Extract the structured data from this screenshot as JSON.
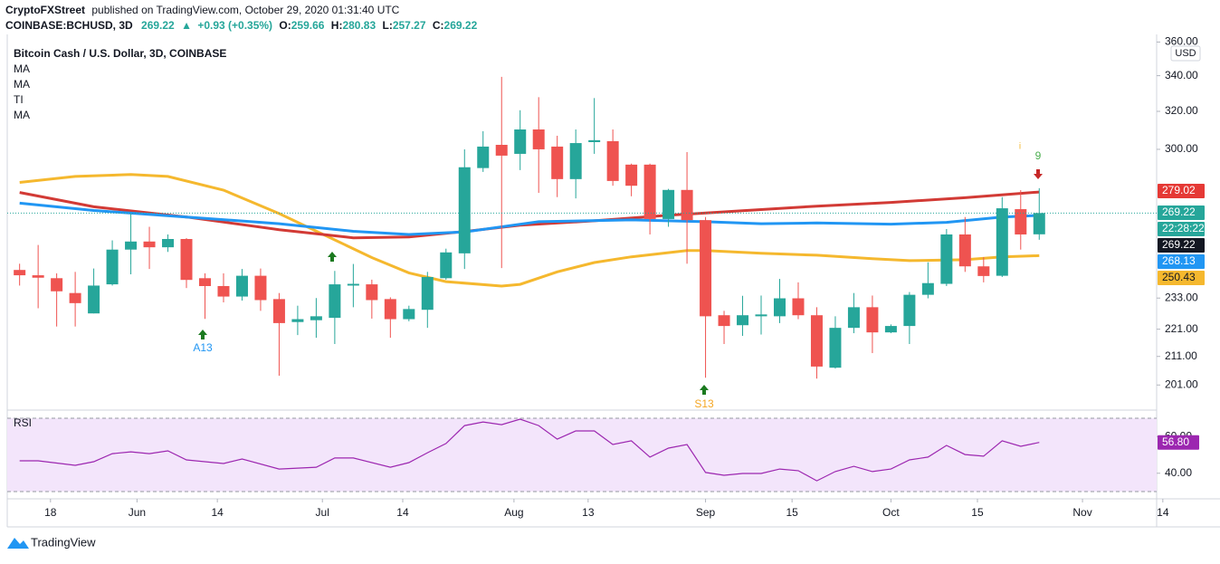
{
  "header": {
    "author": "CryptoFXStreet",
    "published": "published on TradingView.com, October 29, 2020 01:31:40 UTC",
    "symbol": "COINBASE:BCHUSD, 3D",
    "last": "269.22",
    "arrow": "▲",
    "change": "+0.93 (+0.35%)",
    "ohlc": [
      {
        "key": "O:",
        "value": "259.66"
      },
      {
        "key": "H:",
        "value": "280.83"
      },
      {
        "key": "L:",
        "value": "257.27"
      },
      {
        "key": "C:",
        "value": "269.22"
      }
    ]
  },
  "footer": {
    "brand": "TradingView"
  },
  "chart_data": [
    {
      "type": "candlestick",
      "title": "Bitcoin Cash / U.S. Dollar, 3D, COINBASE",
      "legend": [
        "MA",
        "MA",
        "TI",
        "MA"
      ],
      "currency": "USD",
      "log": true,
      "grid": false,
      "up_color": "#26a69a",
      "down_color": "#ef5350",
      "xlim": [
        "2020-05-11",
        "2020-11-13"
      ],
      "xticks": [
        {
          "value": "2020-05-18",
          "label": "18"
        },
        {
          "value": "2020-06-01",
          "label": "Jun"
        },
        {
          "value": "2020-06-14",
          "label": "14"
        },
        {
          "value": "2020-07-01",
          "label": "Jul"
        },
        {
          "value": "2020-07-14",
          "label": "14"
        },
        {
          "value": "2020-08-01",
          "label": "Aug"
        },
        {
          "value": "2020-08-13",
          "label": "13"
        },
        {
          "value": "2020-09-01",
          "label": "Sep"
        },
        {
          "value": "2020-09-15",
          "label": "15"
        },
        {
          "value": "2020-10-01",
          "label": "Oct"
        },
        {
          "value": "2020-10-15",
          "label": "15"
        },
        {
          "value": "2020-11-01",
          "label": "Nov"
        },
        {
          "value": "2020-11-14",
          "label": "14"
        }
      ],
      "ylim": [
        193.5,
        364.7
      ],
      "yticks": [
        {
          "value": 360,
          "label": "360.00"
        },
        {
          "value": 340,
          "label": "340.00"
        },
        {
          "value": 320,
          "label": "320.00"
        },
        {
          "value": 300,
          "label": "300.00"
        },
        {
          "value": 233,
          "label": "233.00"
        },
        {
          "value": 221,
          "label": "221.00"
        },
        {
          "value": 211,
          "label": "211.00"
        },
        {
          "value": 201,
          "label": "201.00"
        }
      ],
      "x": [
        "2020-05-13",
        "2020-05-16",
        "2020-05-19",
        "2020-05-22",
        "2020-05-25",
        "2020-05-28",
        "2020-05-31",
        "2020-06-03",
        "2020-06-06",
        "2020-06-09",
        "2020-06-12",
        "2020-06-15",
        "2020-06-18",
        "2020-06-21",
        "2020-06-24",
        "2020-06-27",
        "2020-06-30",
        "2020-07-03",
        "2020-07-06",
        "2020-07-09",
        "2020-07-12",
        "2020-07-15",
        "2020-07-18",
        "2020-07-21",
        "2020-07-24",
        "2020-07-27",
        "2020-07-30",
        "2020-08-02",
        "2020-08-05",
        "2020-08-08",
        "2020-08-11",
        "2020-08-14",
        "2020-08-17",
        "2020-08-20",
        "2020-08-23",
        "2020-08-26",
        "2020-08-29",
        "2020-09-01",
        "2020-09-04",
        "2020-09-07",
        "2020-09-10",
        "2020-09-13",
        "2020-09-16",
        "2020-09-19",
        "2020-09-22",
        "2020-09-25",
        "2020-09-28",
        "2020-10-01",
        "2020-10-04",
        "2020-10-07",
        "2020-10-10",
        "2020-10-13",
        "2020-10-16",
        "2020-10-19",
        "2020-10-22",
        "2020-10-25"
      ],
      "open": [
        244.4,
        242.2,
        241,
        235,
        227,
        238.5,
        253,
        256.5,
        254,
        257.6,
        241,
        237.8,
        233.6,
        242,
        232.6,
        223.7,
        224.4,
        225.3,
        238,
        238.5,
        232.6,
        224.8,
        228.4,
        241,
        251.4,
        290.6,
        302.3,
        297.7,
        310.3,
        301.4,
        285.2,
        303.7,
        304.2,
        292.3,
        292.3,
        266.5,
        280,
        266,
        226.3,
        222.5,
        225.9,
        225.9,
        232.9,
        226.3,
        207,
        221.5,
        229.4,
        219.8,
        222.2,
        234.3,
        238.7,
        259.6,
        245.9,
        242,
        271,
        259.66
      ],
      "high": [
        247,
        255,
        243,
        243.6,
        245,
        257,
        268.9,
        263,
        259.6,
        258,
        243,
        243,
        244.8,
        245,
        235,
        230,
        233,
        244,
        246.9,
        240.4,
        233.3,
        230,
        243.6,
        253.4,
        300,
        309.4,
        339.3,
        320.6,
        327.8,
        307,
        310.3,
        327.3,
        310.3,
        292.8,
        292.8,
        280.5,
        298.6,
        267.4,
        228,
        233.9,
        234,
        240.7,
        239.3,
        229.4,
        225.9,
        235,
        234,
        222.8,
        235.4,
        247.6,
        262,
        267.4,
        249.8,
        276.6,
        279.9,
        280.83
      ],
      "low": [
        238,
        229,
        222,
        222,
        227,
        238,
        242.6,
        244.8,
        252,
        237,
        224.9,
        231.3,
        232,
        228,
        204.2,
        218.8,
        217.8,
        215.5,
        229.4,
        225,
        217.8,
        224,
        221.5,
        240.4,
        244.8,
        288.7,
        245.2,
        289.6,
        278.6,
        276.6,
        276,
        297.7,
        282,
        277,
        259.6,
        263,
        247,
        203.5,
        215.5,
        218.5,
        219,
        223.3,
        224.8,
        203.2,
        206.7,
        219.5,
        212.2,
        219.5,
        215.5,
        232.9,
        237.8,
        243.6,
        239.3,
        241.5,
        253,
        257.27
      ],
      "close": [
        242.2,
        241.2,
        235.7,
        231,
        238,
        253,
        256.5,
        254,
        257.6,
        240.3,
        237.8,
        233.6,
        242,
        232.2,
        223.3,
        224.8,
        225.9,
        238.5,
        238.7,
        232.2,
        224.8,
        228.7,
        241.5,
        251.8,
        291,
        301.4,
        296.8,
        310.3,
        300,
        285.2,
        303.2,
        304.7,
        284.3,
        282,
        266.5,
        280,
        266,
        225.9,
        222.2,
        226.3,
        226.6,
        232.9,
        226.3,
        207.4,
        221.5,
        229.4,
        219.8,
        222.2,
        234.3,
        239,
        259.6,
        245.9,
        241.9,
        271.4,
        259.6,
        269.22
      ],
      "series": [
        {
          "color": "#f5b82e",
          "x": [
            "2020-05-13",
            "2020-05-22",
            "2020-05-31",
            "2020-06-06",
            "2020-06-15",
            "2020-06-24",
            "2020-07-03",
            "2020-07-09",
            "2020-07-15",
            "2020-07-21",
            "2020-07-30",
            "2020-08-02",
            "2020-08-08",
            "2020-08-14",
            "2020-08-20",
            "2020-08-29",
            "2020-09-01",
            "2020-09-10",
            "2020-09-19",
            "2020-09-28",
            "2020-10-04",
            "2020-10-13",
            "2020-10-19",
            "2020-10-25"
          ],
          "values": [
            283.6,
            286.5,
            287.4,
            286.5,
            279.9,
            269.0,
            257.2,
            249.6,
            243.2,
            239.6,
            237.8,
            238.5,
            243.6,
            247.5,
            249.9,
            252.6,
            252.6,
            251.4,
            250.6,
            249.1,
            248.3,
            248.7,
            249.9,
            250.43
          ]
        },
        {
          "color": "#d23a35",
          "x": [
            "2020-05-13",
            "2020-05-25",
            "2020-06-09",
            "2020-06-24",
            "2020-07-06",
            "2020-07-15",
            "2020-07-24",
            "2020-08-02",
            "2020-08-14",
            "2020-08-26",
            "2020-09-07",
            "2020-09-19",
            "2020-10-01",
            "2020-10-13",
            "2020-10-25"
          ],
          "values": [
            278.8,
            272.1,
            267.4,
            261.7,
            258.1,
            258.5,
            260.9,
            263.7,
            265.7,
            268.2,
            270.3,
            272.4,
            274.1,
            276.3,
            279.02
          ]
        },
        {
          "color": "#2196f3",
          "x": [
            "2020-05-13",
            "2020-05-25",
            "2020-06-09",
            "2020-06-24",
            "2020-07-06",
            "2020-07-15",
            "2020-07-24",
            "2020-08-05",
            "2020-08-20",
            "2020-09-01",
            "2020-09-10",
            "2020-09-19",
            "2020-10-01",
            "2020-10-10",
            "2020-10-19",
            "2020-10-25"
          ],
          "values": [
            273.8,
            270.4,
            267.4,
            264.4,
            261.0,
            259.6,
            260.7,
            265.3,
            266.1,
            265.3,
            264.4,
            264.7,
            264.2,
            265.0,
            267.4,
            268.13
          ]
        }
      ],
      "price_tags": [
        {
          "label": "279.02",
          "color": "#e53935",
          "text_color": "#ffffff"
        },
        {
          "label": "269.22",
          "color": "#26a69a",
          "text_color": "#ffffff"
        },
        {
          "label": "22:28:22",
          "color": "#26a69a",
          "text_color": "#ffffff"
        },
        {
          "label": "269.22",
          "color": "#131722",
          "text_color": "#ffffff"
        },
        {
          "label": "268.13",
          "color": "#2196f3",
          "text_color": "#ffffff"
        },
        {
          "label": "250.43",
          "color": "#f5b82e",
          "text_color": "#131722"
        }
      ],
      "annotations": [
        {
          "text": "A13",
          "color": "#2196f3"
        },
        {
          "text": "S13",
          "color": "#f5a623"
        },
        {
          "text": "9",
          "color": "#4caf50"
        },
        {
          "text": "i",
          "color": "#f5b82e"
        }
      ]
    },
    {
      "type": "line",
      "title": "RSI",
      "color": "#9c27b0",
      "band_color": "#f3e5fb",
      "xlim": [
        "2020-05-11",
        "2020-11-13"
      ],
      "ylim": [
        30,
        70
      ],
      "yticks": [
        {
          "value": 40,
          "label": "40.00"
        },
        {
          "value": 60,
          "label": "60.00"
        }
      ],
      "x": [
        "2020-05-13",
        "2020-05-16",
        "2020-05-22",
        "2020-05-25",
        "2020-05-28",
        "2020-05-31",
        "2020-06-03",
        "2020-06-06",
        "2020-06-09",
        "2020-06-15",
        "2020-06-18",
        "2020-06-24",
        "2020-06-30",
        "2020-07-03",
        "2020-07-06",
        "2020-07-12",
        "2020-07-15",
        "2020-07-18",
        "2020-07-21",
        "2020-07-24",
        "2020-07-27",
        "2020-07-30",
        "2020-08-02",
        "2020-08-05",
        "2020-08-08",
        "2020-08-11",
        "2020-08-14",
        "2020-08-17",
        "2020-08-20",
        "2020-08-23",
        "2020-08-26",
        "2020-08-29",
        "2020-09-01",
        "2020-09-04",
        "2020-09-07",
        "2020-09-10",
        "2020-09-13",
        "2020-09-16",
        "2020-09-19",
        "2020-09-22",
        "2020-09-25",
        "2020-09-28",
        "2020-10-01",
        "2020-10-04",
        "2020-10-07",
        "2020-10-10",
        "2020-10-13",
        "2020-10-16",
        "2020-10-19",
        "2020-10-22",
        "2020-10-25"
      ],
      "values": [
        46.8,
        46.8,
        44.3,
        46.3,
        50.7,
        51.7,
        50.7,
        52.2,
        47.3,
        45.3,
        47.8,
        42.3,
        43.3,
        48.3,
        48.3,
        43.3,
        45.8,
        51.2,
        56.2,
        66.0,
        68.0,
        66.5,
        69.5,
        66.0,
        58.6,
        63.1,
        63.1,
        55.7,
        57.7,
        48.8,
        53.7,
        55.7,
        40.4,
        38.9,
        39.9,
        39.9,
        42.3,
        41.4,
        35.9,
        40.9,
        43.8,
        40.9,
        42.3,
        47.3,
        48.8,
        55.2,
        50.2,
        49.3,
        57.7,
        54.7,
        56.8
      ],
      "value_label": "56.80"
    }
  ]
}
